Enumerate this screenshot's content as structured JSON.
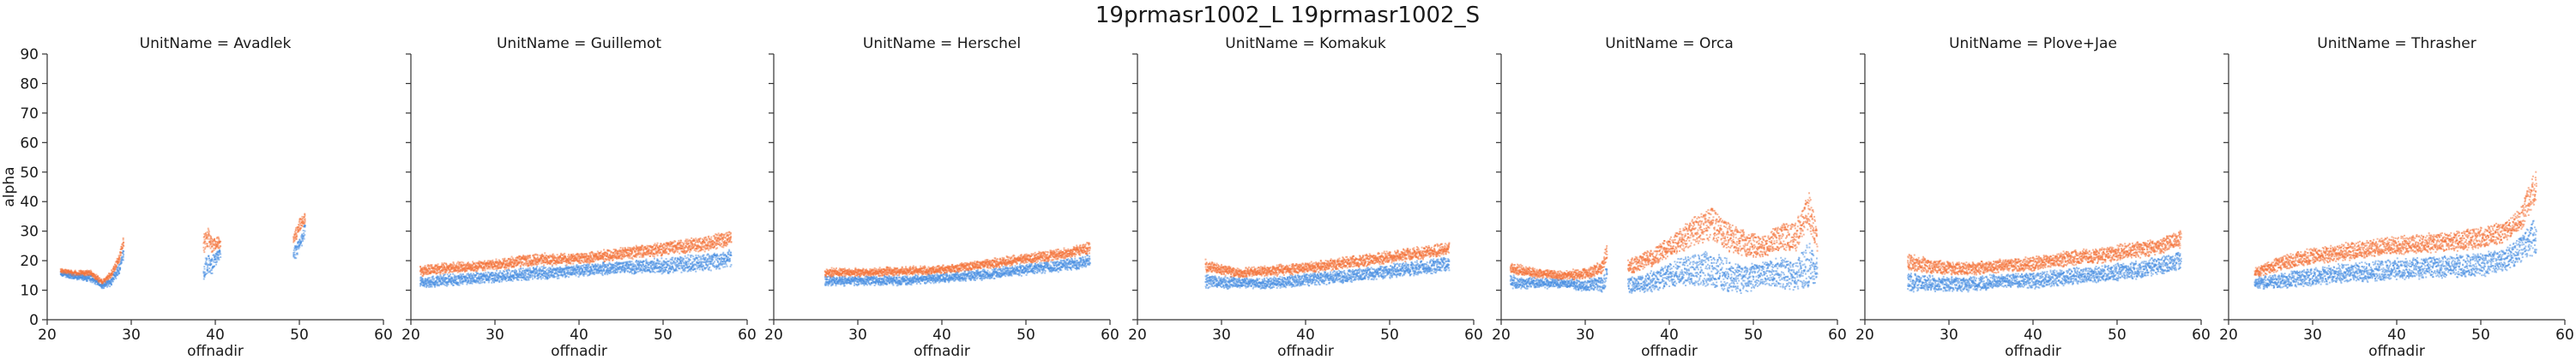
{
  "chart_data": {
    "type": "scatter",
    "title": "19prmasr1002_L 19prmasr1002_S",
    "xlabel": "offnadir",
    "ylabel": "alpha",
    "xlim": [
      20,
      60
    ],
    "ylim": [
      0,
      90
    ],
    "xticks": [
      20,
      30,
      40,
      50,
      60
    ],
    "yticks": [
      0,
      10,
      20,
      30,
      40,
      50,
      60,
      70,
      80,
      90
    ],
    "grid": false,
    "legend": "none",
    "series_colors": [
      "#f4743c",
      "#4a90e2"
    ],
    "panels": [
      {
        "title": "UnitName = Avadlek",
        "segments": [
          {
            "x": [
              21.5,
              29.0
            ],
            "top": [
              [
                21.5,
                17
              ],
              [
                23.5,
                16
              ],
              [
                25,
                16.5
              ],
              [
                26.5,
                13
              ],
              [
                27.5,
                16
              ],
              [
                28.5,
                22
              ],
              [
                29,
                28
              ]
            ],
            "bottom": [
              [
                21.5,
                15
              ],
              [
                23.5,
                14
              ],
              [
                25,
                13.5
              ],
              [
                26.5,
                11
              ],
              [
                27.5,
                12
              ],
              [
                28.5,
                16
              ],
              [
                29,
                21
              ]
            ]
          },
          {
            "x": [
              38.5,
              40.5
            ],
            "top": [
              [
                38.5,
                28
              ],
              [
                39,
                31
              ],
              [
                39.5,
                27
              ],
              [
                40,
                28
              ],
              [
                40.5,
                27
              ]
            ],
            "bottom": [
              [
                38.5,
                13
              ],
              [
                39,
                16
              ],
              [
                39.5,
                16
              ],
              [
                40,
                19
              ],
              [
                40.5,
                21
              ]
            ]
          },
          {
            "x": [
              49.2,
              50.6
            ],
            "top": [
              [
                49.2,
                28
              ],
              [
                49.6,
                32
              ],
              [
                50.2,
                35
              ],
              [
                50.6,
                36
              ]
            ],
            "bottom": [
              [
                49.2,
                20
              ],
              [
                49.6,
                21
              ],
              [
                50.2,
                25
              ],
              [
                50.6,
                29
              ]
            ]
          }
        ]
      },
      {
        "title": "UnitName = Guillemot",
        "segments": [
          {
            "x": [
              21.0,
              58.0
            ],
            "top": [
              [
                21,
                18
              ],
              [
                25,
                19
              ],
              [
                30,
                20
              ],
              [
                35,
                22
              ],
              [
                40,
                22
              ],
              [
                45,
                24
              ],
              [
                50,
                26
              ],
              [
                55,
                28
              ],
              [
                58,
                30
              ]
            ],
            "bottom": [
              [
                21,
                11
              ],
              [
                25,
                12
              ],
              [
                30,
                13
              ],
              [
                35,
                14
              ],
              [
                40,
                15
              ],
              [
                45,
                16
              ],
              [
                50,
                16
              ],
              [
                55,
                17
              ],
              [
                58,
                18
              ]
            ]
          }
        ]
      },
      {
        "title": "UnitName = Herschel",
        "segments": [
          {
            "x": [
              26.0,
              57.5
            ],
            "top": [
              [
                26,
                17
              ],
              [
                30,
                17
              ],
              [
                35,
                17.5
              ],
              [
                40,
                18
              ],
              [
                45,
                20
              ],
              [
                50,
                22
              ],
              [
                55,
                24
              ],
              [
                57.5,
                26
              ]
            ],
            "bottom": [
              [
                26,
                12
              ],
              [
                30,
                12
              ],
              [
                35,
                12
              ],
              [
                40,
                13
              ],
              [
                45,
                14
              ],
              [
                50,
                15.5
              ],
              [
                55,
                17
              ],
              [
                57.5,
                18
              ]
            ]
          }
        ]
      },
      {
        "title": "UnitName = Komakuk",
        "segments": [
          {
            "x": [
              28.0,
              57.0
            ],
            "top": [
              [
                28,
                20
              ],
              [
                32,
                17
              ],
              [
                36,
                18
              ],
              [
                40,
                19
              ],
              [
                45,
                21
              ],
              [
                50,
                23
              ],
              [
                55,
                25
              ],
              [
                57,
                26
              ]
            ],
            "bottom": [
              [
                28,
                11
              ],
              [
                32,
                11
              ],
              [
                36,
                11
              ],
              [
                40,
                12
              ],
              [
                45,
                13
              ],
              [
                50,
                14.5
              ],
              [
                55,
                16
              ],
              [
                57,
                17
              ]
            ]
          }
        ]
      },
      {
        "title": "UnitName = Orca",
        "segments": [
          {
            "x": [
              21.0,
              32.5
            ],
            "top": [
              [
                21,
                19
              ],
              [
                24,
                17
              ],
              [
                27,
                16
              ],
              [
                30,
                17
              ],
              [
                32,
                20
              ],
              [
                32.5,
                26
              ]
            ],
            "bottom": [
              [
                21,
                11
              ],
              [
                24,
                11
              ],
              [
                27,
                11
              ],
              [
                30,
                10
              ],
              [
                32,
                10
              ],
              [
                32.5,
                12
              ]
            ]
          },
          {
            "x": [
              35.0,
              57.5
            ],
            "top": [
              [
                35,
                20
              ],
              [
                38,
                24
              ],
              [
                41,
                30
              ],
              [
                43,
                35
              ],
              [
                45,
                38
              ],
              [
                47,
                32
              ],
              [
                49,
                30
              ],
              [
                51,
                28
              ],
              [
                53,
                32
              ],
              [
                55,
                33
              ],
              [
                56.5,
                44
              ],
              [
                57.5,
                30
              ]
            ],
            "bottom": [
              [
                35,
                9
              ],
              [
                38,
                10
              ],
              [
                41,
                12
              ],
              [
                43,
                12
              ],
              [
                45,
                11
              ],
              [
                47,
                10
              ],
              [
                49,
                9
              ],
              [
                51,
                12
              ],
              [
                53,
                11
              ],
              [
                55,
                10
              ],
              [
                56.5,
                11
              ],
              [
                57.5,
                12
              ]
            ]
          }
        ]
      },
      {
        "title": "UnitName = Plove+Jae",
        "segments": [
          {
            "x": [
              25.0,
              57.5
            ],
            "top": [
              [
                25,
                22
              ],
              [
                28,
                20
              ],
              [
                32,
                19
              ],
              [
                36,
                20
              ],
              [
                40,
                21
              ],
              [
                44,
                23
              ],
              [
                48,
                24
              ],
              [
                52,
                26
              ],
              [
                55,
                27
              ],
              [
                57.5,
                30
              ]
            ],
            "bottom": [
              [
                25,
                10
              ],
              [
                28,
                10
              ],
              [
                32,
                10
              ],
              [
                36,
                11
              ],
              [
                40,
                11
              ],
              [
                44,
                12
              ],
              [
                48,
                13
              ],
              [
                52,
                14
              ],
              [
                55,
                16
              ],
              [
                57.5,
                17
              ]
            ]
          }
        ]
      },
      {
        "title": "UnitName = Thrasher",
        "segments": [
          {
            "x": [
              23.0,
              56.5
            ],
            "top": [
              [
                23,
                17
              ],
              [
                26,
                21
              ],
              [
                30,
                24
              ],
              [
                35,
                26
              ],
              [
                40,
                28
              ],
              [
                45,
                29
              ],
              [
                50,
                31
              ],
              [
                53,
                33
              ],
              [
                55,
                40
              ],
              [
                56.5,
                52
              ]
            ],
            "bottom": [
              [
                23,
                11
              ],
              [
                26,
                11
              ],
              [
                30,
                12
              ],
              [
                35,
                13
              ],
              [
                40,
                14
              ],
              [
                45,
                14.5
              ],
              [
                50,
                15
              ],
              [
                53,
                17
              ],
              [
                55,
                20
              ],
              [
                56.5,
                22
              ]
            ]
          }
        ]
      }
    ]
  }
}
